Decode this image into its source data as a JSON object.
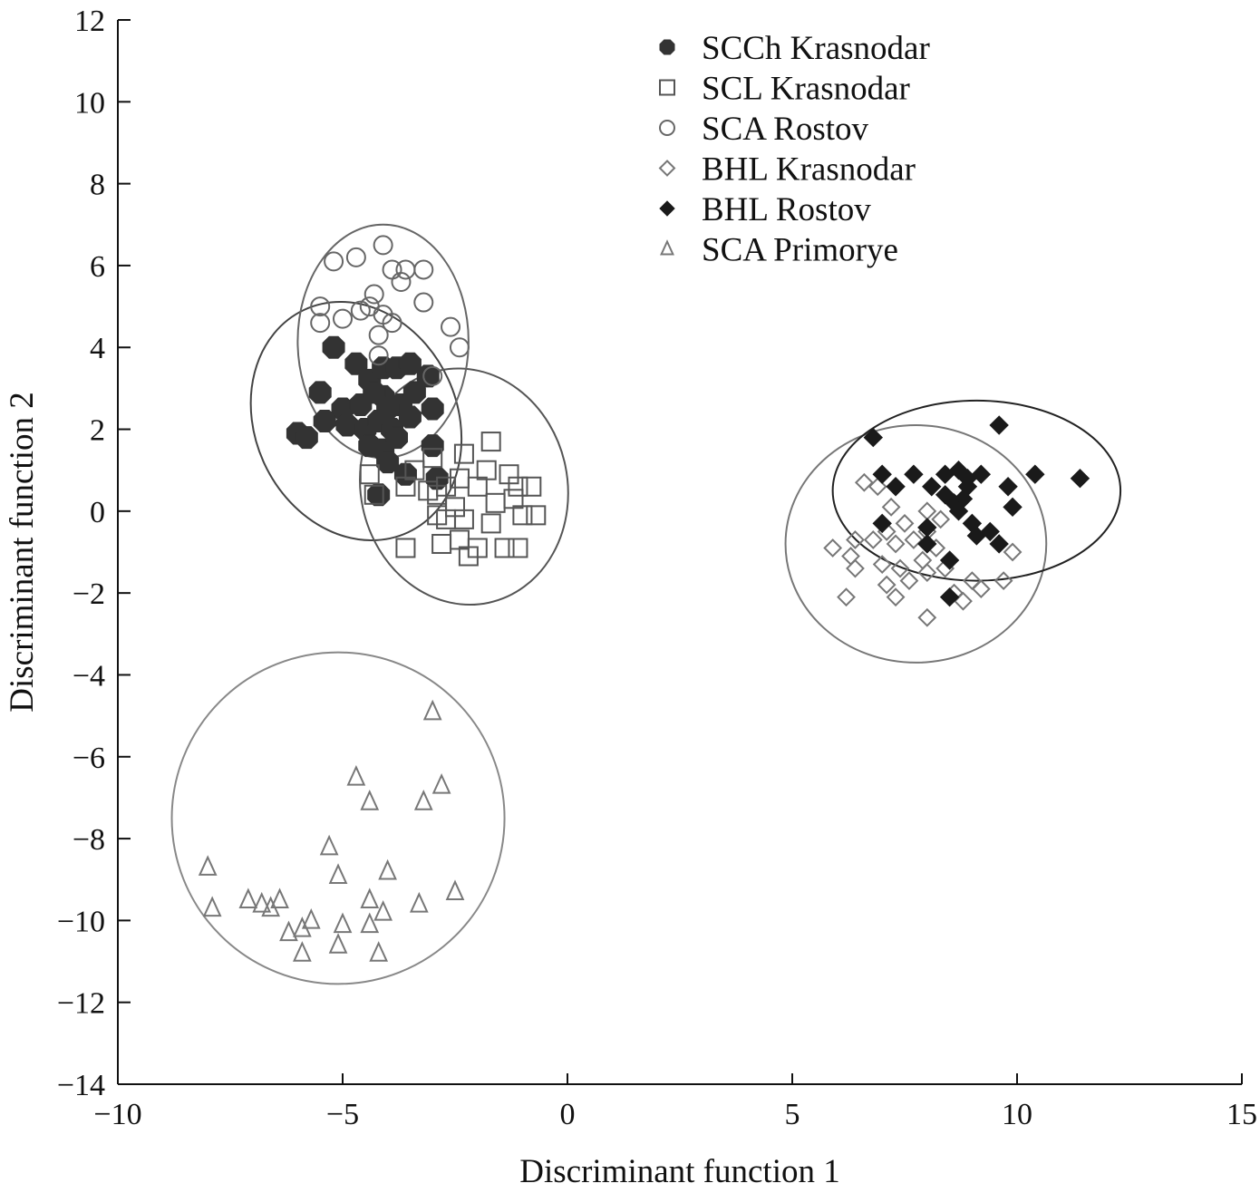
{
  "chart_data": {
    "type": "scatter",
    "xlabel": "Discriminant function 1",
    "ylabel": "Discriminant function 2",
    "xlim": [
      -10,
      15
    ],
    "ylim": [
      -14,
      12
    ],
    "xticks": [
      -10,
      -5,
      0,
      5,
      10,
      15
    ],
    "yticks": [
      12,
      10,
      8,
      6,
      4,
      2,
      0,
      -2,
      -4,
      -6,
      -8,
      -10,
      -12,
      -14
    ],
    "xtick_labels": [
      "−10",
      "−5",
      "0",
      "5",
      "10",
      "15"
    ],
    "ytick_labels": [
      "12",
      "10",
      "8",
      "6",
      "4",
      "2",
      "0",
      "−2",
      "−4",
      "−6",
      "−8",
      "−10",
      "−12",
      "−14"
    ],
    "grid": false,
    "legend_position": "top-right",
    "series": [
      {
        "name": "SCCh Krasnodar",
        "marker": "filled-octagon",
        "color": "#333333",
        "points": [
          [
            -5.2,
            4.0
          ],
          [
            -4.7,
            3.6
          ],
          [
            -4.4,
            3.2
          ],
          [
            -4.1,
            3.5
          ],
          [
            -3.8,
            3.5
          ],
          [
            -3.5,
            3.6
          ],
          [
            -3.1,
            3.3
          ],
          [
            -5.5,
            2.9
          ],
          [
            -5.0,
            2.5
          ],
          [
            -4.6,
            2.6
          ],
          [
            -4.1,
            2.8
          ],
          [
            -3.7,
            2.6
          ],
          [
            -3.4,
            2.9
          ],
          [
            -3.0,
            2.5
          ],
          [
            -5.4,
            2.2
          ],
          [
            -4.9,
            2.1
          ],
          [
            -4.5,
            2.0
          ],
          [
            -4.2,
            2.2
          ],
          [
            -3.9,
            2.0
          ],
          [
            -3.5,
            2.3
          ],
          [
            -6.0,
            1.9
          ],
          [
            -5.8,
            1.8
          ],
          [
            -4.4,
            1.6
          ],
          [
            -4.1,
            1.5
          ],
          [
            -3.8,
            1.8
          ],
          [
            -3.0,
            1.6
          ],
          [
            -4.0,
            1.2
          ],
          [
            -2.9,
            0.8
          ],
          [
            -4.2,
            0.4
          ],
          [
            -3.6,
            0.9
          ],
          [
            -4.0,
            2.5
          ],
          [
            -4.3,
            2.9
          ]
        ]
      },
      {
        "name": "SCL Krasnodar",
        "marker": "open-square",
        "color": "#555555",
        "points": [
          [
            -1.7,
            1.7
          ],
          [
            -2.3,
            1.4
          ],
          [
            -3.0,
            1.3
          ],
          [
            -3.4,
            1.0
          ],
          [
            -2.4,
            0.8
          ],
          [
            -1.8,
            1.0
          ],
          [
            -1.3,
            0.9
          ],
          [
            -1.1,
            0.6
          ],
          [
            -0.8,
            0.6
          ],
          [
            -2.9,
            0.4
          ],
          [
            -2.0,
            0.6
          ],
          [
            -1.6,
            0.2
          ],
          [
            -1.2,
            0.3
          ],
          [
            -2.5,
            0.1
          ],
          [
            -2.9,
            -0.1
          ],
          [
            -2.3,
            -0.2
          ],
          [
            -1.7,
            -0.3
          ],
          [
            -1.0,
            -0.1
          ],
          [
            -0.7,
            -0.1
          ],
          [
            -4.4,
            0.9
          ],
          [
            -4.3,
            0.4
          ],
          [
            -3.6,
            0.6
          ],
          [
            -3.1,
            0.5
          ],
          [
            -2.7,
            -0.2
          ],
          [
            -2.4,
            -0.7
          ],
          [
            -2.8,
            -0.8
          ],
          [
            -2.0,
            -0.9
          ],
          [
            -1.4,
            -0.9
          ],
          [
            -1.1,
            -0.9
          ],
          [
            -2.2,
            -1.1
          ],
          [
            -3.6,
            -0.9
          ],
          [
            -2.7,
            0.6
          ]
        ]
      },
      {
        "name": "SCA Rostov",
        "marker": "open-circle",
        "color": "#666666",
        "points": [
          [
            -4.1,
            6.5
          ],
          [
            -5.2,
            6.1
          ],
          [
            -4.7,
            6.2
          ],
          [
            -3.9,
            5.9
          ],
          [
            -3.6,
            5.9
          ],
          [
            -3.2,
            5.9
          ],
          [
            -3.7,
            5.6
          ],
          [
            -3.2,
            5.1
          ],
          [
            -4.3,
            5.3
          ],
          [
            -5.5,
            5.0
          ],
          [
            -4.6,
            4.9
          ],
          [
            -4.1,
            4.8
          ],
          [
            -3.9,
            4.6
          ],
          [
            -5.0,
            4.7
          ],
          [
            -5.5,
            4.6
          ],
          [
            -4.2,
            4.3
          ],
          [
            -2.6,
            4.5
          ],
          [
            -2.4,
            4.0
          ],
          [
            -4.2,
            3.8
          ],
          [
            -3.0,
            3.3
          ],
          [
            -4.4,
            5.0
          ]
        ]
      },
      {
        "name": "BHL Krasnodar",
        "marker": "open-diamond",
        "color": "#777777",
        "points": [
          [
            6.6,
            0.7
          ],
          [
            6.9,
            0.6
          ],
          [
            7.2,
            0.1
          ],
          [
            7.5,
            -0.3
          ],
          [
            8.0,
            0.0
          ],
          [
            8.3,
            -0.2
          ],
          [
            6.4,
            -0.7
          ],
          [
            6.8,
            -0.7
          ],
          [
            7.1,
            -0.5
          ],
          [
            7.3,
            -0.8
          ],
          [
            7.7,
            -0.7
          ],
          [
            8.0,
            -0.5
          ],
          [
            8.2,
            -0.9
          ],
          [
            5.9,
            -0.9
          ],
          [
            6.3,
            -1.1
          ],
          [
            7.0,
            -1.3
          ],
          [
            7.4,
            -1.4
          ],
          [
            7.9,
            -1.2
          ],
          [
            8.4,
            -1.4
          ],
          [
            6.4,
            -1.4
          ],
          [
            7.1,
            -1.8
          ],
          [
            7.6,
            -1.7
          ],
          [
            8.0,
            -1.5
          ],
          [
            9.0,
            -1.7
          ],
          [
            9.9,
            -1.0
          ],
          [
            9.7,
            -1.7
          ],
          [
            6.2,
            -2.1
          ],
          [
            7.3,
            -2.1
          ],
          [
            8.8,
            -2.2
          ],
          [
            9.2,
            -1.9
          ],
          [
            8.0,
            -2.6
          ],
          [
            8.6,
            -2.0
          ]
        ]
      },
      {
        "name": "BHL Rostov",
        "marker": "filled-diamond",
        "color": "#1a1a1a",
        "points": [
          [
            6.8,
            1.8
          ],
          [
            9.6,
            2.1
          ],
          [
            7.0,
            0.9
          ],
          [
            7.7,
            0.9
          ],
          [
            8.4,
            0.9
          ],
          [
            8.7,
            1.0
          ],
          [
            9.2,
            0.9
          ],
          [
            10.4,
            0.9
          ],
          [
            11.4,
            0.8
          ],
          [
            7.3,
            0.6
          ],
          [
            8.1,
            0.6
          ],
          [
            8.9,
            0.6
          ],
          [
            9.8,
            0.6
          ],
          [
            8.4,
            0.4
          ],
          [
            8.6,
            0.2
          ],
          [
            8.8,
            0.3
          ],
          [
            9.9,
            0.1
          ],
          [
            8.7,
            0.0
          ],
          [
            9.0,
            -0.3
          ],
          [
            7.0,
            -0.3
          ],
          [
            8.0,
            -0.4
          ],
          [
            9.1,
            -0.6
          ],
          [
            9.6,
            -0.8
          ],
          [
            8.0,
            -0.8
          ],
          [
            8.5,
            -1.2
          ],
          [
            8.5,
            -2.1
          ],
          [
            9.4,
            -0.5
          ],
          [
            8.9,
            0.8
          ]
        ]
      },
      {
        "name": "SCA Primorye",
        "marker": "open-triangle",
        "color": "#777777",
        "points": [
          [
            -3.0,
            -4.9
          ],
          [
            -4.7,
            -6.5
          ],
          [
            -4.4,
            -7.1
          ],
          [
            -2.8,
            -6.7
          ],
          [
            -3.2,
            -7.1
          ],
          [
            -5.3,
            -8.2
          ],
          [
            -5.1,
            -8.9
          ],
          [
            -4.0,
            -8.8
          ],
          [
            -8.0,
            -8.7
          ],
          [
            -7.9,
            -9.7
          ],
          [
            -7.1,
            -9.5
          ],
          [
            -6.8,
            -9.6
          ],
          [
            -6.6,
            -9.7
          ],
          [
            -6.4,
            -9.5
          ],
          [
            -5.7,
            -10.0
          ],
          [
            -6.2,
            -10.3
          ],
          [
            -5.9,
            -10.2
          ],
          [
            -5.0,
            -10.1
          ],
          [
            -4.4,
            -9.5
          ],
          [
            -4.1,
            -9.8
          ],
          [
            -3.3,
            -9.6
          ],
          [
            -2.5,
            -9.3
          ],
          [
            -4.4,
            -10.1
          ],
          [
            -5.9,
            -10.8
          ],
          [
            -5.1,
            -10.6
          ],
          [
            -4.2,
            -10.8
          ]
        ]
      }
    ],
    "ellipses": [
      {
        "name": "SCCh Krasnodar",
        "cx": -4.7,
        "cy": 2.2,
        "rx": 2.25,
        "ry": 3.0,
        "angle": -25,
        "color": "#444444"
      },
      {
        "name": "SCL Krasnodar",
        "cx": -2.3,
        "cy": 0.6,
        "rx": 2.3,
        "ry": 2.9,
        "angle": -12,
        "color": "#555555"
      },
      {
        "name": "SCA Rostov",
        "cx": -4.1,
        "cy": 4.15,
        "rx": 1.9,
        "ry": 2.85,
        "angle": 0,
        "color": "#666666"
      },
      {
        "name": "BHL Krasnodar",
        "cx": 7.75,
        "cy": -0.8,
        "rx": 2.9,
        "ry": 2.9,
        "angle": 0,
        "color": "#777777"
      },
      {
        "name": "BHL Rostov",
        "cx": 9.1,
        "cy": 0.5,
        "rx": 3.2,
        "ry": 2.2,
        "angle": 0,
        "color": "#222222"
      },
      {
        "name": "SCA Primorye",
        "cx": -5.1,
        "cy": -7.5,
        "rx": 3.7,
        "ry": 4.05,
        "angle": 0,
        "color": "#888888"
      }
    ]
  }
}
